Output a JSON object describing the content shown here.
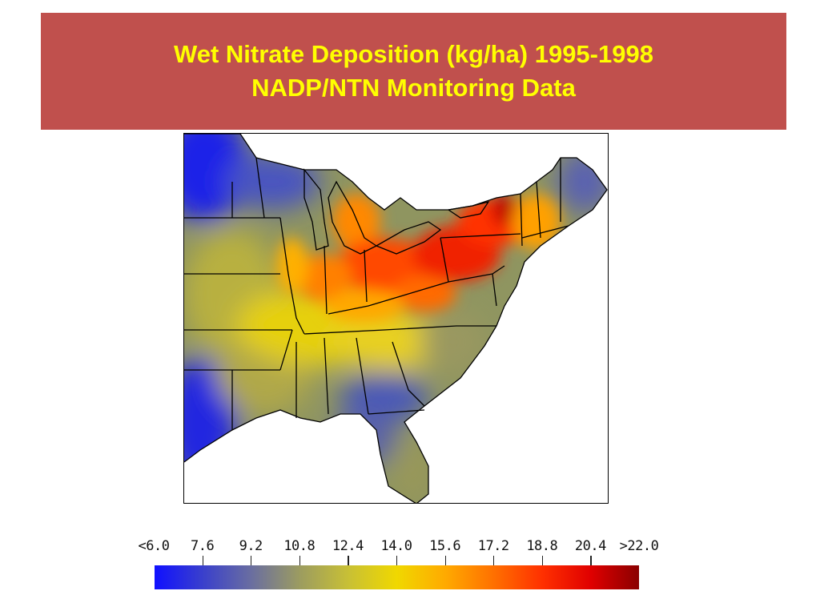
{
  "title": {
    "line1": "Wet Nitrate Deposition (kg/ha) 1995-1998",
    "line2": "NADP/NTN Monitoring Data"
  },
  "colors": {
    "banner": "#c0504d",
    "title_text": "#ffff00"
  },
  "map": {
    "region": "Eastern United States",
    "variable": "wet nitrate deposition",
    "units": "kg/ha"
  },
  "legend": {
    "labels": [
      "<6.0",
      "7.6",
      "9.2",
      "10.8",
      "12.4",
      "14.0",
      "15.6",
      "17.2",
      "18.8",
      "20.4",
      ">22.0"
    ],
    "values": [
      6.0,
      7.6,
      9.2,
      10.8,
      12.4,
      14.0,
      15.6,
      17.2,
      18.8,
      20.4,
      22.0
    ],
    "colormap": [
      "#1010ff",
      "#3a40cc",
      "#6a6ea0",
      "#9c9c60",
      "#c8c035",
      "#f0d800",
      "#ffaa00",
      "#ff7000",
      "#ff3000",
      "#e00000",
      "#8a0000"
    ]
  }
}
